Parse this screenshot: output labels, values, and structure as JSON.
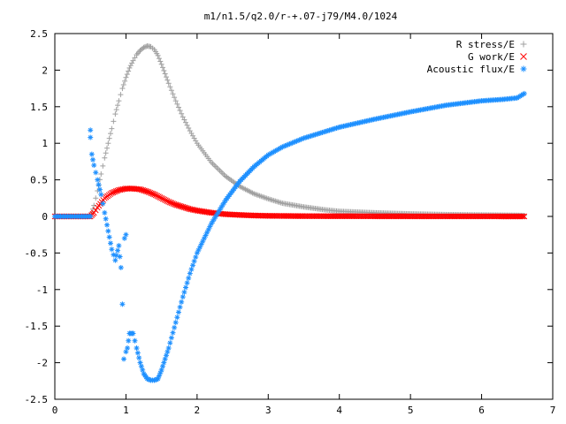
{
  "chart_data": {
    "type": "scatter",
    "title": "m1/n1.5/q2.0/r-+.07-j79/M4.0/1024",
    "xlabel": "",
    "ylabel": "",
    "xlim": [
      0,
      7
    ],
    "ylim": [
      -2.5,
      2.5
    ],
    "x_ticks": [
      "0",
      "1",
      "2",
      "3",
      "4",
      "5",
      "6",
      "7"
    ],
    "y_ticks": [
      "2.5",
      "2",
      "1.5",
      "1",
      "0.5",
      "0",
      "-0.5",
      "-1",
      "-1.5",
      "-2",
      "-2.5"
    ],
    "grid": false,
    "legend_position": "top-right",
    "series": [
      {
        "name": "R stress/E",
        "marker": "+",
        "color": "#a0a0a0",
        "x": [
          0.0,
          0.1,
          0.2,
          0.3,
          0.4,
          0.5,
          0.52,
          0.55,
          0.6,
          0.65,
          0.7,
          0.75,
          0.8,
          0.85,
          0.9,
          0.95,
          1.0,
          1.05,
          1.1,
          1.15,
          1.2,
          1.25,
          1.3,
          1.35,
          1.4,
          1.45,
          1.5,
          1.55,
          1.6,
          1.7,
          1.8,
          1.9,
          2.0,
          2.2,
          2.4,
          2.6,
          2.8,
          3.0,
          3.2,
          3.5,
          3.8,
          4.0,
          4.5,
          5.0,
          5.5,
          6.0,
          6.5,
          6.6
        ],
        "y": [
          0.0,
          0.0,
          0.0,
          0.0,
          0.0,
          0.0,
          0.05,
          0.15,
          0.35,
          0.58,
          0.8,
          1.0,
          1.2,
          1.4,
          1.58,
          1.75,
          1.9,
          2.03,
          2.13,
          2.21,
          2.27,
          2.31,
          2.33,
          2.32,
          2.28,
          2.2,
          2.08,
          1.95,
          1.82,
          1.58,
          1.36,
          1.17,
          1.0,
          0.74,
          0.55,
          0.41,
          0.31,
          0.24,
          0.18,
          0.13,
          0.09,
          0.07,
          0.05,
          0.035,
          0.025,
          0.02,
          0.015,
          0.012
        ]
      },
      {
        "name": "G work/E",
        "marker": "x",
        "color": "#ff0000",
        "x": [
          0.0,
          0.1,
          0.2,
          0.3,
          0.4,
          0.5,
          0.55,
          0.6,
          0.7,
          0.8,
          0.9,
          1.0,
          1.1,
          1.2,
          1.3,
          1.4,
          1.5,
          1.6,
          1.7,
          1.8,
          1.9,
          2.0,
          2.2,
          2.4,
          2.6,
          2.8,
          3.0,
          3.5,
          4.0,
          4.5,
          5.0,
          5.5,
          6.0,
          6.5,
          6.6
        ],
        "y": [
          0.0,
          0.0,
          0.0,
          0.0,
          0.0,
          0.0,
          0.05,
          0.12,
          0.25,
          0.32,
          0.36,
          0.38,
          0.38,
          0.37,
          0.34,
          0.3,
          0.25,
          0.2,
          0.16,
          0.13,
          0.1,
          0.08,
          0.05,
          0.03,
          0.02,
          0.012,
          0.008,
          0.004,
          0.003,
          0.002,
          0.001,
          0.001,
          0.001,
          0.0,
          0.0
        ]
      },
      {
        "name": "Acoustic flux/E",
        "marker": "*",
        "color": "#1e90ff",
        "x": [
          0.0,
          0.1,
          0.2,
          0.3,
          0.4,
          0.5,
          0.5,
          0.5,
          0.52,
          0.55,
          0.6,
          0.65,
          0.7,
          0.75,
          0.8,
          0.85,
          0.9,
          0.93,
          0.95,
          0.97,
          0.98,
          1.0,
          1.0,
          1.02,
          1.05,
          1.1,
          1.15,
          1.2,
          1.25,
          1.3,
          1.35,
          1.4,
          1.45,
          1.5,
          1.55,
          1.6,
          1.7,
          1.8,
          1.9,
          2.0,
          2.2,
          2.4,
          2.6,
          2.8,
          3.0,
          3.2,
          3.5,
          4.0,
          4.5,
          5.0,
          5.5,
          6.0,
          6.3,
          6.5,
          6.6
        ],
        "y": [
          0.0,
          0.0,
          0.0,
          0.0,
          0.0,
          0.0,
          1.18,
          1.08,
          0.85,
          0.7,
          0.5,
          0.3,
          0.05,
          -0.2,
          -0.45,
          -0.6,
          -0.4,
          -0.7,
          -1.2,
          -1.95,
          -0.3,
          -0.25,
          -1.85,
          -1.8,
          -1.6,
          -1.6,
          -1.8,
          -2.0,
          -2.15,
          -2.22,
          -2.24,
          -2.24,
          -2.22,
          -2.1,
          -1.95,
          -1.8,
          -1.45,
          -1.1,
          -0.78,
          -0.5,
          -0.1,
          0.22,
          0.48,
          0.68,
          0.84,
          0.95,
          1.07,
          1.22,
          1.33,
          1.43,
          1.52,
          1.58,
          1.6,
          1.62,
          1.68
        ]
      }
    ]
  }
}
